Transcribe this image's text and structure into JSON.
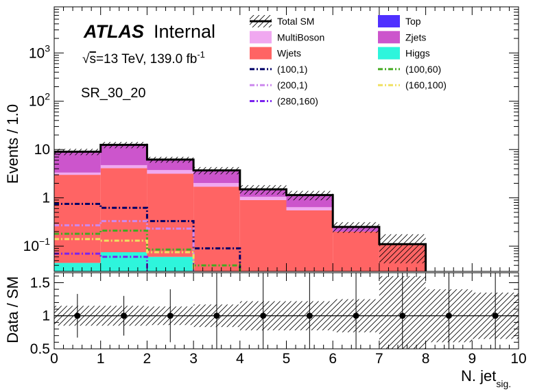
{
  "chart_data": [
    {
      "type": "bar",
      "subtype": "stacked-histogram",
      "yscale": "log",
      "ylabel": "Events / 1.0",
      "ylim": [
        0.03,
        9000
      ],
      "y_ticks": [
        {
          "value": 0.1,
          "base": "10",
          "exp": "−1"
        },
        {
          "value": 1,
          "text": "1"
        },
        {
          "value": 10,
          "text": "10"
        },
        {
          "value": 100,
          "base": "10",
          "exp": "2"
        },
        {
          "value": 1000,
          "base": "10",
          "exp": "3"
        }
      ],
      "xlim": [
        0,
        10
      ],
      "bin_edges": [
        0,
        1,
        2,
        3,
        4,
        5,
        6,
        7,
        8,
        9,
        10
      ],
      "atlas_label": "ATLAS",
      "internal_label": "Internal",
      "energy_label": {
        "sqrt": "√",
        "s": "s",
        "rest": "=13 TeV, 139.0 fb",
        "sup": "-1"
      },
      "region_label": "SR_30_20",
      "stack_order_bottom_to_top": [
        "Higgs",
        "Top",
        "Wjets",
        "MultiBoson",
        "Zjets"
      ],
      "series": [
        {
          "name": "Higgs",
          "color": "#2ef5dc",
          "values": [
            0.045,
            0.075,
            0.06,
            0.0,
            0.0,
            0.0,
            0.0,
            0.0,
            0.0,
            0.0
          ]
        },
        {
          "name": "Top",
          "color": "#4f30ff",
          "values": [
            0.0,
            0.0,
            0.0,
            0.0,
            0.0,
            0.0,
            0.0,
            0.0,
            0.0,
            0.0
          ]
        },
        {
          "name": "Wjets",
          "color": "#ff6464",
          "values": [
            2.95,
            4.05,
            3.1,
            1.7,
            0.9,
            0.55,
            0.2,
            0.11,
            0.0,
            0.0
          ]
        },
        {
          "name": "MultiBoson",
          "color": "#f0a8f0",
          "values": [
            0.34,
            0.63,
            0.6,
            0.33,
            0.15,
            0.09,
            0.0,
            0.0,
            0.0,
            0.0
          ]
        },
        {
          "name": "Zjets",
          "color": "#cc55cc",
          "values": [
            5.7,
            7.7,
            2.5,
            1.67,
            0.45,
            0.5,
            0.05,
            0.0,
            0.0,
            0.0
          ]
        }
      ],
      "total_sm": {
        "name": "Total SM",
        "values": [
          9.0,
          12.5,
          6.2,
          3.7,
          1.5,
          1.14,
          0.25,
          0.11,
          0.0,
          0.0
        ]
      },
      "signals": [
        {
          "name": "(100,1)",
          "color": "#000066",
          "values": [
            0.75,
            0.62,
            0.33,
            0.09,
            0.0,
            0.0,
            0.0,
            0.0,
            0.0,
            0.0
          ]
        },
        {
          "name": "(100,60)",
          "color": "#44aa22",
          "values": [
            0.18,
            0.21,
            0.085,
            0.04,
            0.0,
            0.0,
            0.0,
            0.0,
            0.0,
            0.0
          ]
        },
        {
          "name": "(200,1)",
          "color": "#cc88ee",
          "values": [
            0.27,
            0.33,
            0.23,
            0.0,
            0.0,
            0.0,
            0.0,
            0.0,
            0.0,
            0.0
          ]
        },
        {
          "name": "(160,100)",
          "color": "#f0e060",
          "values": [
            0.14,
            0.13,
            0.075,
            0.0,
            0.0,
            0.0,
            0.0,
            0.0,
            0.0,
            0.0
          ]
        },
        {
          "name": "(280,160)",
          "color": "#7a22ee",
          "values": [
            0.07,
            0.06,
            0.0,
            0.0,
            0.0,
            0.0,
            0.0,
            0.0,
            0.0,
            0.0
          ]
        }
      ],
      "legend": {
        "placement": "top-right",
        "columns": [
          [
            "Total SM",
            "MultiBoson",
            "Wjets",
            "(100,1)",
            "(200,1)",
            "(280,160)"
          ],
          [
            "Top",
            "Zjets",
            "Higgs",
            "(100,60)",
            "(160,100)"
          ]
        ]
      }
    },
    {
      "type": "scatter",
      "subtype": "ratio",
      "ylabel": "Data / SM",
      "xlabel": {
        "main": "N. jet",
        "sub": "sig."
      },
      "ylim": [
        0.5,
        1.65
      ],
      "y_ticks": [
        "0.5",
        "1",
        "1.5"
      ],
      "x_ticks": [
        "0",
        "1",
        "2",
        "3",
        "4",
        "5",
        "6",
        "7",
        "8",
        "9",
        "10"
      ],
      "xlim": [
        0,
        10
      ],
      "reference_line": 1,
      "x": [
        0.5,
        1.5,
        2.5,
        3.5,
        4.5,
        5.5,
        6.5,
        7.5,
        8.5,
        9.5
      ],
      "y": [
        1,
        1,
        1,
        1,
        1,
        1,
        1,
        1,
        1,
        1
      ],
      "y_err": [
        0.33,
        0.3,
        0.4,
        0.9,
        0.9,
        0.9,
        0.9,
        1.0,
        1.0,
        1.0
      ],
      "band_halfwidth": [
        0.15,
        0.15,
        0.14,
        0.17,
        0.22,
        0.22,
        0.25,
        0.6,
        0.4,
        0.35
      ]
    }
  ]
}
